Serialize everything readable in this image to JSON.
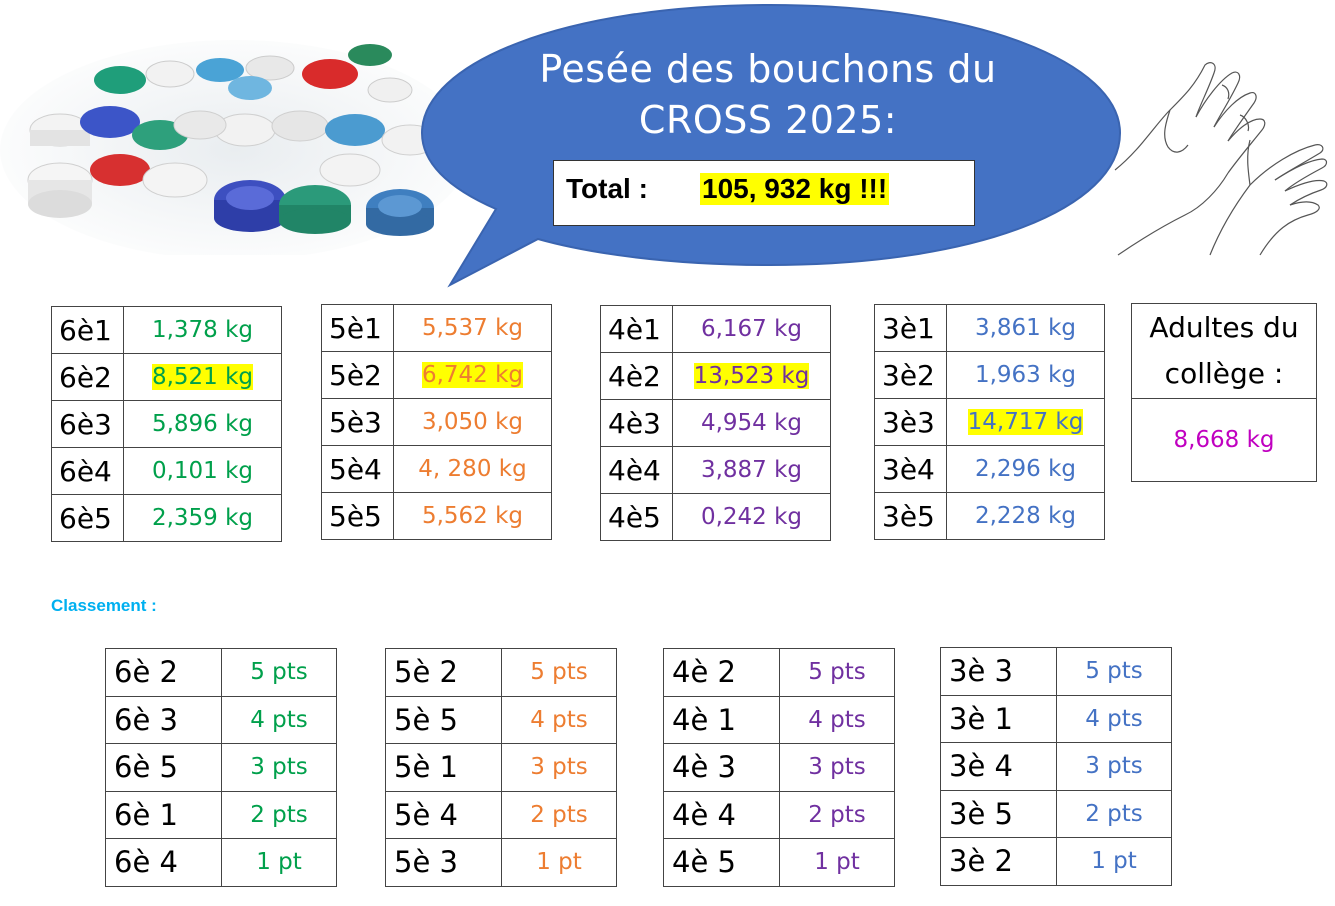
{
  "header": {
    "title_line1": "Pesée des bouchons du",
    "title_line2": "CROSS 2025:",
    "total_label": "Total :",
    "total_value": "105, 932 kg !!!"
  },
  "colors": {
    "sixth": "#00a04b",
    "fifth": "#ed7d31",
    "fourth": "#7030a0",
    "third": "#4472c4",
    "adults": "#c000c0",
    "bubble": "#4472c4",
    "highlight": "#ffff00",
    "classement": "#00b0f0"
  },
  "weights": {
    "sixth": [
      {
        "cls": "6è1",
        "val": "1,378 kg"
      },
      {
        "cls": "6è2",
        "val": "8,521 kg",
        "highlight": true
      },
      {
        "cls": "6è3",
        "val": "5,896 kg"
      },
      {
        "cls": "6è4",
        "val": "0,101 kg"
      },
      {
        "cls": "6è5",
        "val": "2,359 kg"
      }
    ],
    "fifth": [
      {
        "cls": "5è1",
        "val": "5,537 kg"
      },
      {
        "cls": "5è2",
        "val": "6,742 kg",
        "highlight": true
      },
      {
        "cls": "5è3",
        "val": "3,050 kg"
      },
      {
        "cls": "5è4",
        "val": "4, 280 kg"
      },
      {
        "cls": "5è5",
        "val": "5,562 kg"
      }
    ],
    "fourth": [
      {
        "cls": "4è1",
        "val": "6,167 kg"
      },
      {
        "cls": "4è2",
        "val": "13,523 kg",
        "highlight": true
      },
      {
        "cls": "4è3",
        "val": "4,954 kg"
      },
      {
        "cls": "4è4",
        "val": "3,887 kg"
      },
      {
        "cls": "4è5",
        "val": "0,242 kg"
      }
    ],
    "third": [
      {
        "cls": "3è1",
        "val": "3,861 kg"
      },
      {
        "cls": "3è2",
        "val": "1,963 kg"
      },
      {
        "cls": "3è3",
        "val": "14,717 kg",
        "highlight": true
      },
      {
        "cls": "3è4",
        "val": "2,296 kg"
      },
      {
        "cls": "3è5",
        "val": "2,228 kg"
      }
    ]
  },
  "adults": {
    "label_line1": "Adultes du",
    "label_line2": "collège :",
    "value": "8,668 kg"
  },
  "classement_label": "Classement :",
  "ranking": {
    "sixth": [
      {
        "cls": "6è 2",
        "pts": "5 pts"
      },
      {
        "cls": "6è 3",
        "pts": "4 pts"
      },
      {
        "cls": "6è 5",
        "pts": "3 pts"
      },
      {
        "cls": "6è 1",
        "pts": "2 pts"
      },
      {
        "cls": "6è 4",
        "pts": "1 pt"
      }
    ],
    "fifth": [
      {
        "cls": "5è 2",
        "pts": "5 pts"
      },
      {
        "cls": "5è 5",
        "pts": "4 pts"
      },
      {
        "cls": "5è 1",
        "pts": "3 pts"
      },
      {
        "cls": "5è 4",
        "pts": "2 pts"
      },
      {
        "cls": "5è 3",
        "pts": "1 pt"
      }
    ],
    "fourth": [
      {
        "cls": "4è 2",
        "pts": "5 pts"
      },
      {
        "cls": "4è 1",
        "pts": "4 pts"
      },
      {
        "cls": "4è 3",
        "pts": "3 pts"
      },
      {
        "cls": "4è 4",
        "pts": "2 pts"
      },
      {
        "cls": "4è 5",
        "pts": "1 pt"
      }
    ],
    "third": [
      {
        "cls": "3è 3",
        "pts": "5 pts"
      },
      {
        "cls": "3è 1",
        "pts": "4 pts"
      },
      {
        "cls": "3è 4",
        "pts": "3 pts"
      },
      {
        "cls": "3è 5",
        "pts": "2 pts"
      },
      {
        "cls": "3è 2",
        "pts": "1 pt"
      }
    ]
  }
}
